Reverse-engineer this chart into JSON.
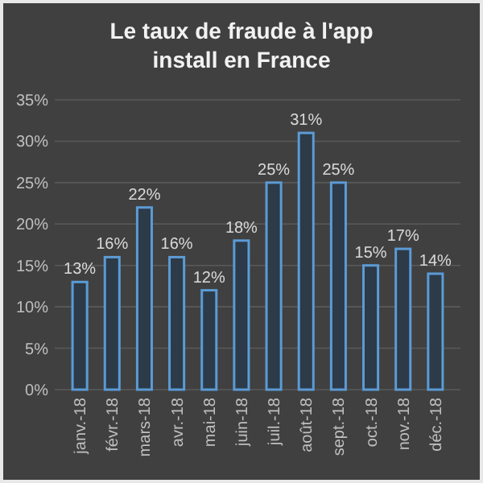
{
  "chart_data": {
    "type": "bar",
    "title": "Le taux de fraude à l'app install en France",
    "categories": [
      "janv.-18",
      "févr.-18",
      "mars-18",
      "avr.-18",
      "mai-18",
      "juin-18",
      "juil.-18",
      "août-18",
      "sept.-18",
      "oct.-18",
      "nov.-18",
      "déc.-18"
    ],
    "values": [
      13,
      16,
      22,
      16,
      12,
      18,
      25,
      31,
      25,
      15,
      17,
      14
    ],
    "value_labels": [
      "13%",
      "16%",
      "22%",
      "16%",
      "12%",
      "18%",
      "25%",
      "31%",
      "25%",
      "15%",
      "17%",
      "14%"
    ],
    "color": "#5b9bd5",
    "ylim": [
      0,
      35
    ],
    "yticks": [
      {
        "value": 0,
        "label": "0%"
      },
      {
        "value": 5,
        "label": "5%"
      },
      {
        "value": 10,
        "label": "10%"
      },
      {
        "value": 15,
        "label": "15%"
      },
      {
        "value": 20,
        "label": "20%"
      },
      {
        "value": 25,
        "label": "25%"
      },
      {
        "value": 30,
        "label": "30%"
      },
      {
        "value": 35,
        "label": "35%"
      }
    ],
    "grid": "y"
  }
}
